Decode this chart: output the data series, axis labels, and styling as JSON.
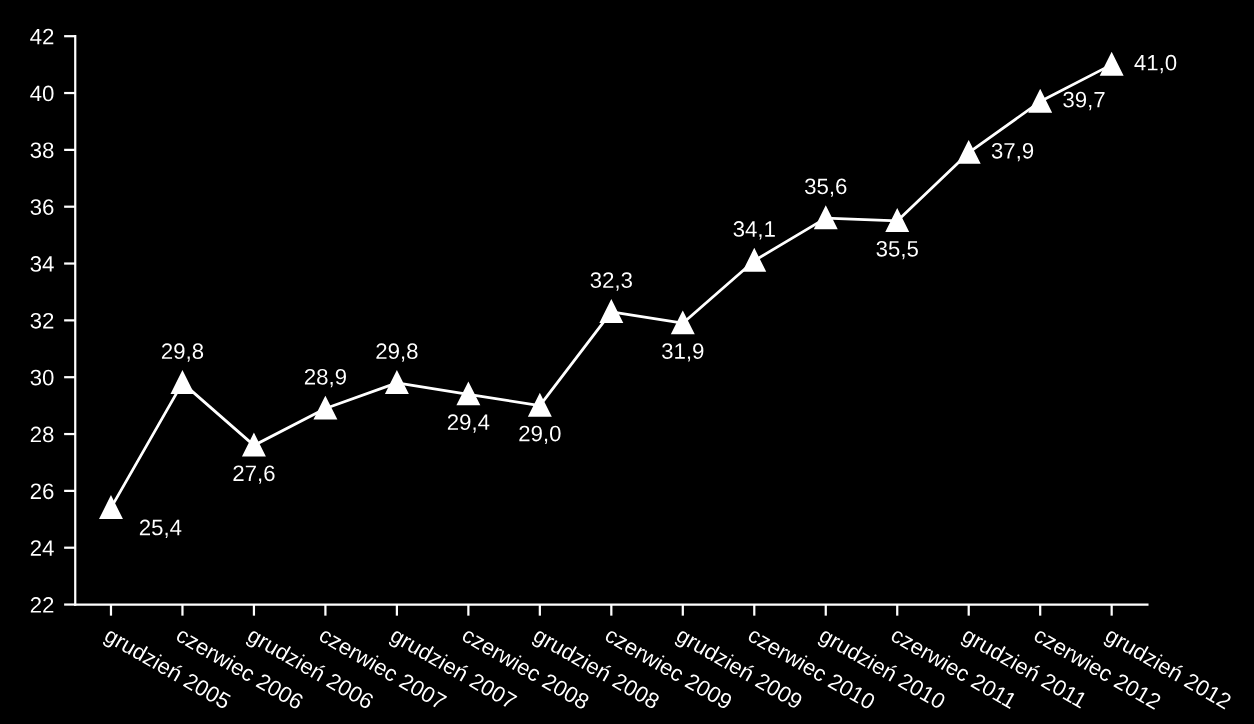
{
  "chart_data": {
    "type": "line",
    "categories": [
      "grudzień 2005",
      "czerwiec 2006",
      "grudzień 2006",
      "czerwiec 2007",
      "grudzień 2007",
      "czerwiec 2008",
      "grudzień 2008",
      "czerwiec 2009",
      "grudzień 2009",
      "czerwiec 2010",
      "grudzień 2010",
      "czerwiec 2011",
      "grudzień 2011",
      "czerwiec 2012",
      "grudzień 2012"
    ],
    "values": [
      25.4,
      29.8,
      27.6,
      28.9,
      29.8,
      29.4,
      29.0,
      32.3,
      31.9,
      34.1,
      35.6,
      35.5,
      37.9,
      39.7,
      41.0
    ],
    "value_labels": [
      "25,4",
      "29,8",
      "27,6",
      "28,9",
      "29,8",
      "29,4",
      "29,0",
      "32,3",
      "31,9",
      "34,1",
      "35,6",
      "35,5",
      "37,9",
      "39,7",
      "41,0"
    ],
    "color": "#ffffff",
    "marker": "triangle",
    "line_style": "solid",
    "ylim": [
      22,
      42
    ],
    "yticks": [
      22,
      24,
      26,
      28,
      30,
      32,
      34,
      36,
      38,
      40,
      42
    ],
    "grid": false,
    "legend": false
  }
}
